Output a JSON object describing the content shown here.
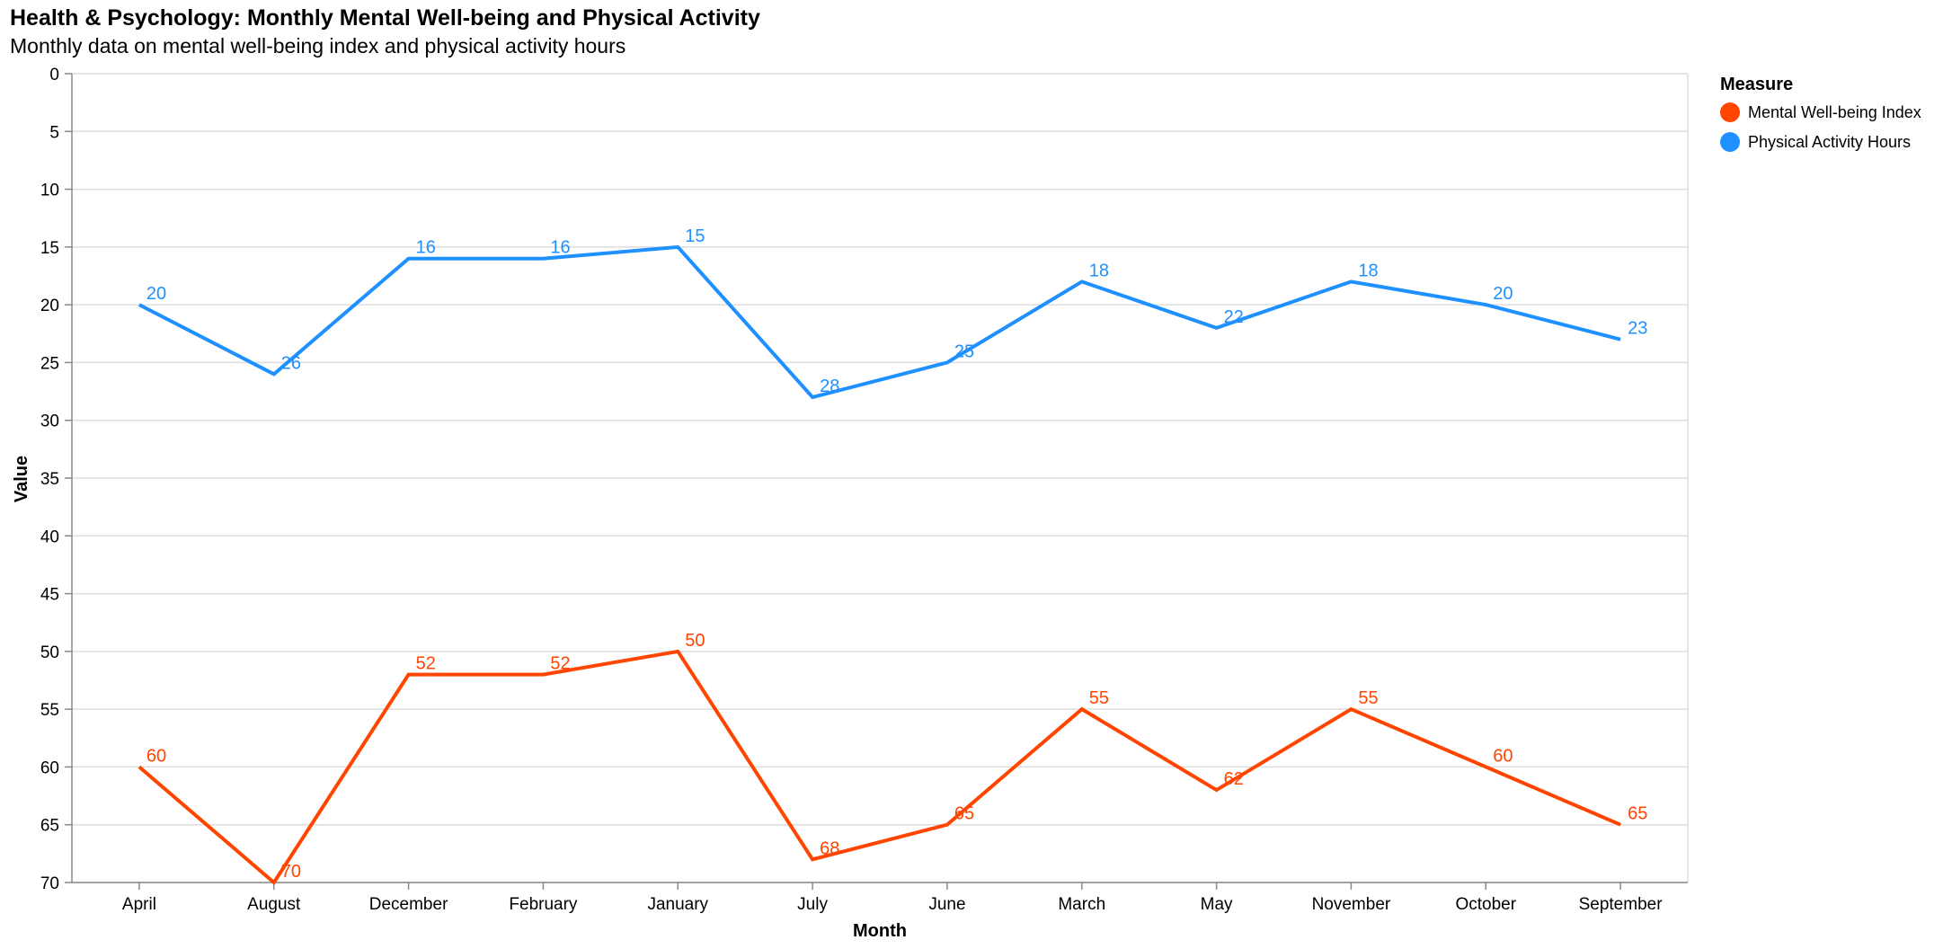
{
  "chart_data": {
    "type": "line",
    "title": "Health & Psychology: Monthly Mental Well-being and Physical Activity",
    "subtitle": "Monthly data on mental well-being index and physical activity hours",
    "xlabel": "Month",
    "ylabel": "Value",
    "categories": [
      "April",
      "August",
      "December",
      "February",
      "January",
      "July",
      "June",
      "March",
      "May",
      "November",
      "October",
      "September"
    ],
    "y_ticks": [
      0,
      5,
      10,
      15,
      20,
      25,
      30,
      35,
      40,
      45,
      50,
      55,
      60,
      65,
      70
    ],
    "ylim": [
      0,
      70
    ],
    "y_reversed": true,
    "grid": true,
    "legend": {
      "title": "Measure",
      "placement": "top-right"
    },
    "series": [
      {
        "name": "Mental Well-being Index",
        "color": "#ff4500",
        "values": [
          60,
          70,
          52,
          52,
          50,
          68,
          65,
          55,
          62,
          55,
          60,
          65
        ]
      },
      {
        "name": "Physical Activity Hours",
        "color": "#1e90ff",
        "values": [
          20,
          26,
          16,
          16,
          15,
          28,
          25,
          18,
          22,
          18,
          20,
          23
        ]
      }
    ]
  }
}
